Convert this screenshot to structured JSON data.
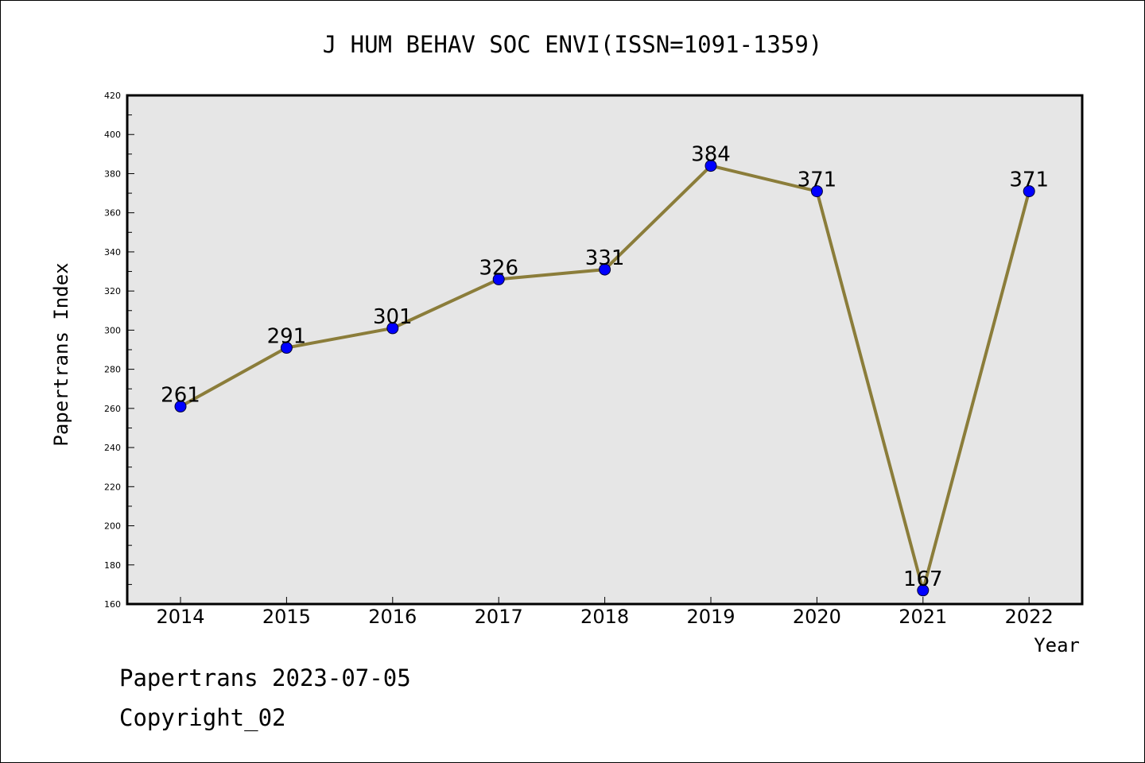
{
  "chart_data": {
    "type": "line",
    "title": "J HUM BEHAV SOC ENVI(ISSN=1091-1359)",
    "xlabel": "Year",
    "ylabel": "Papertrans Index",
    "categories": [
      "2014",
      "2015",
      "2016",
      "2017",
      "2018",
      "2019",
      "2020",
      "2021",
      "2022"
    ],
    "series": [
      {
        "values": [
          261,
          291,
          301,
          326,
          331,
          384,
          371,
          167,
          371
        ]
      }
    ],
    "ylim": [
      160,
      420
    ],
    "yticks": [
      160,
      180,
      200,
      220,
      240,
      260,
      280,
      300,
      320,
      340,
      360,
      380,
      400,
      420
    ],
    "grid": false,
    "legend": "none",
    "line_color": "#8b7d3a",
    "marker_color": "#0000ff",
    "plot_background": "#e6e6e6"
  },
  "footer": {
    "line1": "Papertrans 2023-07-05",
    "line2": "Copyright_02"
  }
}
